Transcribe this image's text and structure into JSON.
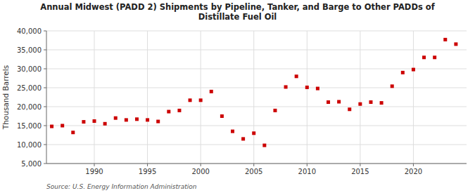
{
  "chart_data": {
    "type": "scatter",
    "title": "Annual Midwest (PADD 2) Shipments by Pipeline, Tanker, and Barge to Other PADDs of\nDistillate Fuel Oil",
    "ylabel": "Thousand Barrels",
    "source": "Source: U.S. Energy Information Administration",
    "x": [
      1986,
      1987,
      1988,
      1989,
      1990,
      1991,
      1992,
      1993,
      1994,
      1995,
      1996,
      1997,
      1998,
      1999,
      2000,
      2001,
      2002,
      2003,
      2004,
      2005,
      2006,
      2007,
      2008,
      2009,
      2010,
      2011,
      2012,
      2013,
      2014,
      2015,
      2016,
      2017,
      2018,
      2019,
      2020,
      2021,
      2022,
      2023,
      2024
    ],
    "values": [
      14800,
      15000,
      13200,
      16000,
      16200,
      15500,
      17000,
      16500,
      16700,
      16500,
      16100,
      18700,
      19000,
      21700,
      21700,
      24000,
      17500,
      13500,
      11500,
      13000,
      9800,
      19000,
      25200,
      28000,
      25100,
      24800,
      21200,
      21300,
      19300,
      20700,
      21200,
      21000,
      25400,
      29000,
      29800,
      33000,
      33000,
      37700,
      36500
    ],
    "color": "#cc0000",
    "marker": "square",
    "xlim": [
      1985.5,
      2025
    ],
    "xticks": [
      1990,
      1995,
      2000,
      2005,
      2010,
      2015,
      2020
    ],
    "ylim": [
      5000,
      40000
    ],
    "yticks": [
      {
        "value": 5000,
        "label": "5,000"
      },
      {
        "value": 10000,
        "label": "10,000"
      },
      {
        "value": 15000,
        "label": "15,000"
      },
      {
        "value": 20000,
        "label": "20,000"
      },
      {
        "value": 25000,
        "label": "25,000"
      },
      {
        "value": 30000,
        "label": "30,000"
      },
      {
        "value": 35000,
        "label": "35,000"
      },
      {
        "value": 40000,
        "label": "40,000"
      }
    ],
    "grid": true
  }
}
